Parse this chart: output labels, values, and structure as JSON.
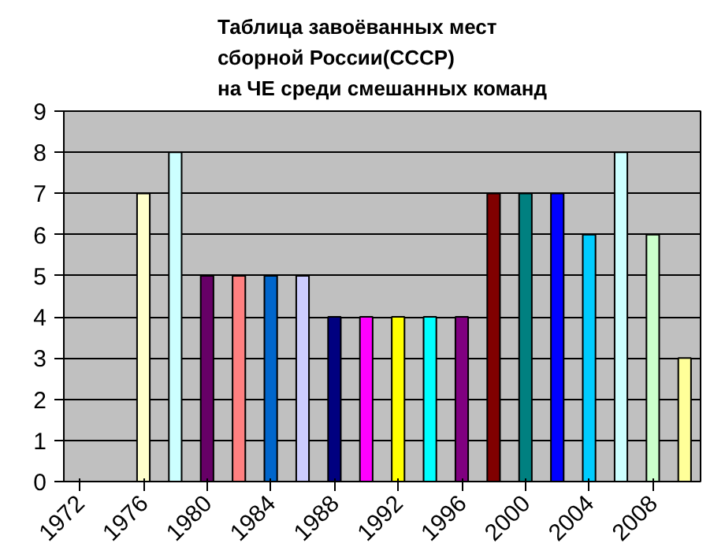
{
  "chart_data": {
    "type": "bar",
    "title": "Таблица завоёванных мест\nсборной России(СССР)\nна ЧЕ среди смешанных команд",
    "categories": [
      "1972",
      null,
      "1976",
      null,
      "1980",
      null,
      "1984",
      null,
      "1988",
      null,
      "1992",
      null,
      "1996",
      null,
      "2000",
      null,
      "2004",
      null,
      "2008",
      null
    ],
    "values": [
      null,
      null,
      7,
      8,
      5,
      5,
      5,
      5,
      4,
      4,
      4,
      4,
      4,
      7,
      7,
      7,
      6,
      8,
      6,
      3
    ],
    "colors": [
      "#ffffcc",
      "#ccffff",
      "#ffffcc",
      "#ccffff",
      "#660066",
      "#ff8080",
      "#0066cc",
      "#ccccff",
      "#000080",
      "#ff00ff",
      "#ffff00",
      "#00ffff",
      "#800080",
      "#800000",
      "#008080",
      "#0000ff",
      "#00ccff",
      "#ccffff",
      "#ccffcc",
      "#ffff99"
    ],
    "ylim": [
      0,
      9
    ],
    "yticks": [
      0,
      1,
      2,
      3,
      4,
      5,
      6,
      7,
      8,
      9
    ],
    "grid": "y"
  }
}
